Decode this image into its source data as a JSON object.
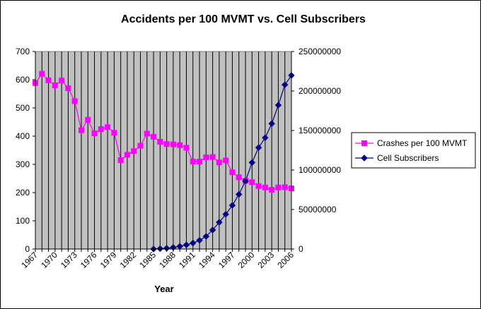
{
  "chart_data": {
    "type": "line",
    "title": "Accidents per 100 MVMT vs. Cell Subscribers",
    "xlabel": "Year",
    "ylabel": "",
    "y2label": "",
    "x": [
      1967,
      1968,
      1969,
      1970,
      1971,
      1972,
      1973,
      1974,
      1975,
      1976,
      1977,
      1978,
      1979,
      1980,
      1981,
      1982,
      1983,
      1984,
      1985,
      1986,
      1987,
      1988,
      1989,
      1990,
      1991,
      1992,
      1993,
      1994,
      1995,
      1996,
      1997,
      1998,
      1999,
      2000,
      2001,
      2002,
      2003,
      2004,
      2005,
      2006
    ],
    "xlim": [
      1967,
      2006
    ],
    "xticks": [
      1967,
      1970,
      1973,
      1976,
      1979,
      1982,
      1985,
      1988,
      1991,
      1994,
      1997,
      2000,
      2003,
      2006
    ],
    "ylim": [
      0,
      700
    ],
    "yticks": [
      0,
      100,
      200,
      300,
      400,
      500,
      600,
      700
    ],
    "y2lim": [
      0,
      250000000
    ],
    "y2ticks": [
      0,
      50000000,
      100000000,
      150000000,
      200000000,
      250000000
    ],
    "grid": "vertical",
    "legend": "right",
    "plot_background": "#c0c0c0",
    "series": [
      {
        "name": "Crashes per 100 MVMT",
        "axis": "left",
        "color": "#ff00ff",
        "marker": "square",
        "values": [
          588,
          621,
          598,
          580,
          597,
          570,
          524,
          421,
          458,
          410,
          425,
          432,
          412,
          315,
          334,
          347,
          366,
          409,
          398,
          380,
          372,
          371,
          368,
          359,
          310,
          310,
          325,
          326,
          307,
          314,
          272,
          254,
          242,
          237,
          223,
          218,
          210,
          218,
          219,
          215
        ]
      },
      {
        "name": "Cell Subscribers",
        "axis": "right",
        "color": "#000080",
        "marker": "diamond",
        "values": [
          null,
          null,
          null,
          null,
          null,
          null,
          null,
          null,
          null,
          null,
          null,
          null,
          null,
          null,
          null,
          null,
          null,
          null,
          0,
          500000,
          1000000,
          2000000,
          3500000,
          5300000,
          7600000,
          11000000,
          16000000,
          24100000,
          33800000,
          44000000,
          55300000,
          69200000,
          86000000,
          109500000,
          128400000,
          140800000,
          158700000,
          182100000,
          207900000,
          219700000
        ]
      }
    ]
  }
}
